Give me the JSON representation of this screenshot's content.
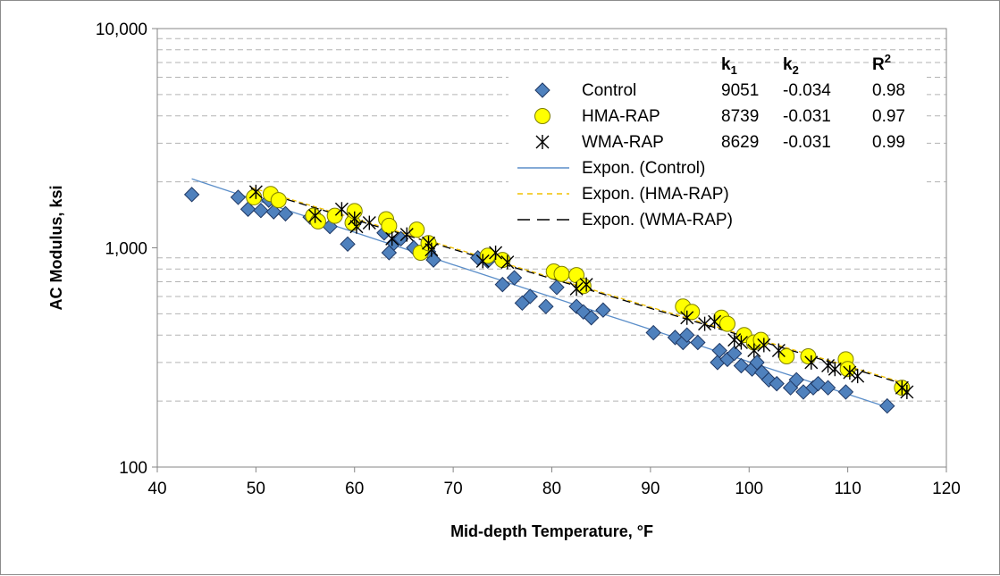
{
  "chart_data": {
    "type": "scatter",
    "x_scale": "linear",
    "y_scale": "log",
    "xlim": [
      40,
      120
    ],
    "ylim": [
      100,
      10000
    ],
    "xlabel": "Mid-depth Temperature, °F",
    "ylabel": "AC Modulus, ksi",
    "x_ticks": [
      "40",
      "50",
      "60",
      "70",
      "80",
      "90",
      "100",
      "110",
      "120"
    ],
    "y_ticks": [
      "100",
      "1,000",
      "10,000"
    ],
    "grid": "horizontal minor dashed",
    "legend_position": "top-right",
    "table_headers": {
      "k1_base": "k",
      "k1_sub": "1",
      "k2_base": "k",
      "k2_sub": "2",
      "r2_base": "R",
      "r2_sup": "2"
    },
    "series": [
      {
        "name": "Control",
        "marker": "diamond",
        "color": "#4f81bd",
        "k1": "9051",
        "k2": "-0.034",
        "r2": "0.98",
        "points": [
          [
            43.5,
            1750
          ],
          [
            48.2,
            1700
          ],
          [
            49.2,
            1500
          ],
          [
            50.5,
            1480
          ],
          [
            51.3,
            1650
          ],
          [
            51.8,
            1460
          ],
          [
            53,
            1430
          ],
          [
            55.5,
            1380
          ],
          [
            57.5,
            1250
          ],
          [
            59.3,
            1040
          ],
          [
            60,
            1300
          ],
          [
            63,
            1170
          ],
          [
            63.5,
            950
          ],
          [
            64,
            1050
          ],
          [
            64.7,
            1100
          ],
          [
            66,
            1000
          ],
          [
            67.5,
            960
          ],
          [
            68,
            880
          ],
          [
            72.5,
            900
          ],
          [
            73.5,
            870
          ],
          [
            75,
            680
          ],
          [
            76.2,
            730
          ],
          [
            77,
            560
          ],
          [
            77.8,
            600
          ],
          [
            79.4,
            540
          ],
          [
            80.5,
            660
          ],
          [
            82.5,
            540
          ],
          [
            83.2,
            510
          ],
          [
            84,
            480
          ],
          [
            85.2,
            520
          ],
          [
            90.3,
            410
          ],
          [
            92.5,
            390
          ],
          [
            93.3,
            370
          ],
          [
            93.7,
            400
          ],
          [
            94.8,
            370
          ],
          [
            96.8,
            300
          ],
          [
            97,
            340
          ],
          [
            97.8,
            310
          ],
          [
            98.5,
            330
          ],
          [
            99.2,
            290
          ],
          [
            100.3,
            280
          ],
          [
            100.8,
            300
          ],
          [
            101.3,
            270
          ],
          [
            102,
            250
          ],
          [
            102.8,
            240
          ],
          [
            104.2,
            230
          ],
          [
            104.8,
            250
          ],
          [
            105.5,
            220
          ],
          [
            106.5,
            230
          ],
          [
            107,
            240
          ],
          [
            108,
            230
          ],
          [
            109.8,
            220
          ],
          [
            114,
            190
          ]
        ]
      },
      {
        "name": "HMA-RAP",
        "marker": "circle",
        "color": "#ffff00",
        "k1": "8739",
        "k2": "-0.031",
        "r2": "0.97",
        "points": [
          [
            49.8,
            1700
          ],
          [
            51.5,
            1760
          ],
          [
            52.3,
            1650
          ],
          [
            55.8,
            1400
          ],
          [
            56.3,
            1320
          ],
          [
            58,
            1400
          ],
          [
            59.8,
            1300
          ],
          [
            60,
            1470
          ],
          [
            63.2,
            1350
          ],
          [
            63.5,
            1260
          ],
          [
            66.3,
            1210
          ],
          [
            66.7,
            950
          ],
          [
            67.5,
            1050
          ],
          [
            73.5,
            920
          ],
          [
            75,
            880
          ],
          [
            80.2,
            780
          ],
          [
            81,
            760
          ],
          [
            82.5,
            750
          ],
          [
            83.2,
            670
          ],
          [
            93.3,
            540
          ],
          [
            94.2,
            510
          ],
          [
            97.2,
            480
          ],
          [
            97.8,
            450
          ],
          [
            99.5,
            400
          ],
          [
            100.5,
            370
          ],
          [
            101.2,
            380
          ],
          [
            103.8,
            320
          ],
          [
            106,
            320
          ],
          [
            109.8,
            310
          ],
          [
            110,
            280
          ],
          [
            115.5,
            230
          ]
        ]
      },
      {
        "name": "WMA-RAP",
        "marker": "asterisk",
        "color": "#000000",
        "k1": "8629",
        "k2": "-0.031",
        "r2": "0.99",
        "points": [
          [
            50,
            1800
          ],
          [
            56,
            1400
          ],
          [
            58.7,
            1500
          ],
          [
            60,
            1360
          ],
          [
            60.2,
            1250
          ],
          [
            61.5,
            1300
          ],
          [
            63.8,
            1100
          ],
          [
            65.3,
            1150
          ],
          [
            67.5,
            1050
          ],
          [
            67.8,
            980
          ],
          [
            73,
            870
          ],
          [
            74.3,
            950
          ],
          [
            75.5,
            860
          ],
          [
            82.5,
            650
          ],
          [
            83.5,
            680
          ],
          [
            93.7,
            480
          ],
          [
            95.5,
            450
          ],
          [
            96.5,
            460
          ],
          [
            98.5,
            380
          ],
          [
            99.2,
            370
          ],
          [
            100.5,
            340
          ],
          [
            101.5,
            360
          ],
          [
            103,
            340
          ],
          [
            106.3,
            300
          ],
          [
            108,
            290
          ],
          [
            108.7,
            280
          ],
          [
            110.2,
            270
          ],
          [
            111,
            260
          ],
          [
            115.5,
            230
          ],
          [
            116,
            220
          ]
        ]
      }
    ],
    "trendlines": [
      {
        "name": "Expon. (Control)",
        "color": "#5b8ec9",
        "dash": "solid",
        "x_start": 43.5,
        "x_end": 114,
        "k1": 9051,
        "k2": -0.034
      },
      {
        "name": "Expon. (HMA-RAP)",
        "color": "#f0c000",
        "dash": "dashed",
        "x_start": 49.5,
        "x_end": 116,
        "k1": 8739,
        "k2": -0.031
      },
      {
        "name": "Expon. (WMA-RAP)",
        "color": "#000000",
        "dash": "longdash",
        "x_start": 49.5,
        "x_end": 116,
        "k1": 8629,
        "k2": -0.031
      }
    ]
  }
}
